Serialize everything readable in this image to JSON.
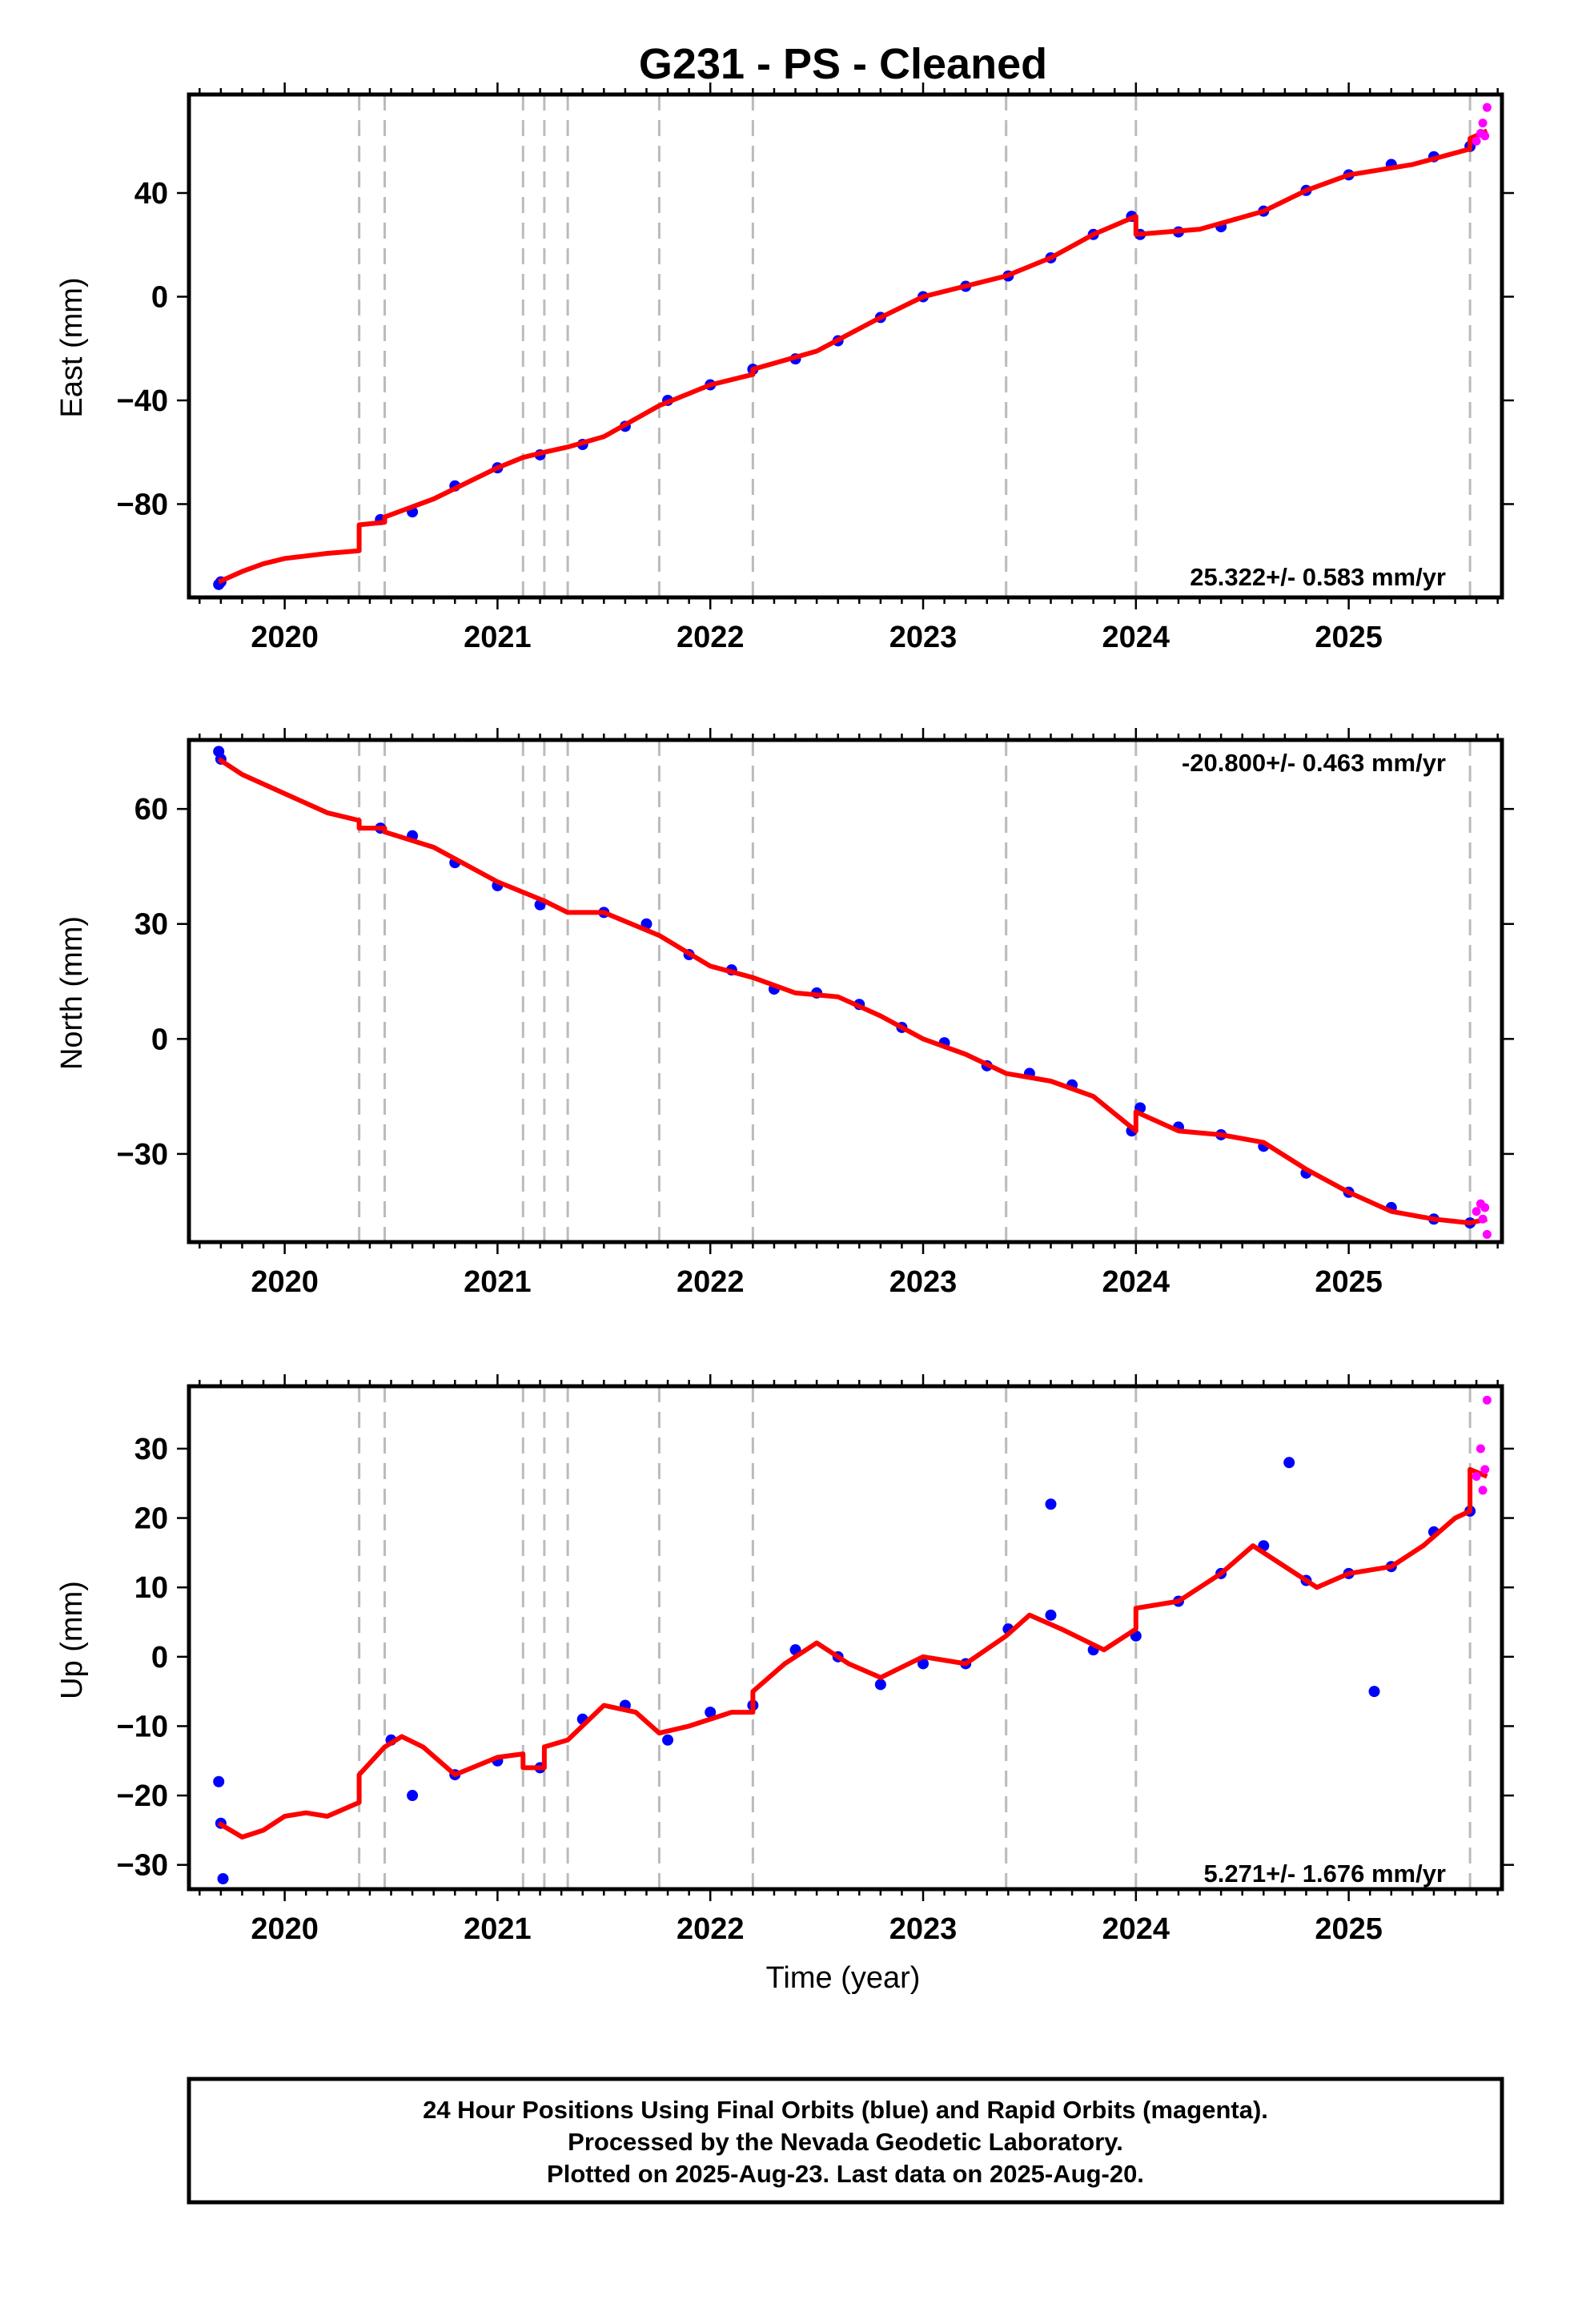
{
  "figure": {
    "title": "G231  - PS - Cleaned",
    "footer": [
      "24 Hour Positions Using Final Orbits (blue) and Rapid Orbits (magenta).",
      "Processed by the Nevada Geodetic Laboratory.",
      "Plotted on 2025-Aug-23. Last data on 2025-Aug-20."
    ],
    "colors": {
      "final_orbits": "#0000ff",
      "rapid_orbits": "#ff00ff",
      "model_fit": "#ff0000",
      "event_lines": "#bbbbbb"
    }
  },
  "chart_data": [
    {
      "type": "scatter",
      "ylabel": "East (mm)",
      "xlabel": "",
      "rate": "25.322+/- 0.583 mm/yr",
      "xlim": [
        2019.55,
        2025.72
      ],
      "ylim": [
        -116,
        78
      ],
      "xticks": [
        2020,
        2021,
        2022,
        2023,
        2024,
        2025
      ],
      "yticks": [
        -80,
        -40,
        0,
        40
      ],
      "event_lines": [
        2020.35,
        2020.47,
        2021.12,
        2021.22,
        2021.33,
        2021.76,
        2022.2,
        2023.39,
        2024.0,
        2025.57
      ],
      "series": [
        {
          "name": "Final Orbits",
          "values": [
            [
              2019.69,
              -111
            ],
            [
              2019.7,
              -110
            ],
            [
              2020.45,
              -86
            ],
            [
              2020.6,
              -83
            ],
            [
              2020.8,
              -73
            ],
            [
              2021.0,
              -66
            ],
            [
              2021.2,
              -61
            ],
            [
              2021.4,
              -57
            ],
            [
              2021.6,
              -50
            ],
            [
              2021.8,
              -40
            ],
            [
              2022.0,
              -34
            ],
            [
              2022.2,
              -28
            ],
            [
              2022.4,
              -24
            ],
            [
              2022.6,
              -17
            ],
            [
              2022.8,
              -8
            ],
            [
              2023.0,
              0
            ],
            [
              2023.2,
              4
            ],
            [
              2023.4,
              8
            ],
            [
              2023.6,
              15
            ],
            [
              2023.8,
              24
            ],
            [
              2023.98,
              31
            ],
            [
              2024.02,
              24
            ],
            [
              2024.2,
              25
            ],
            [
              2024.4,
              27
            ],
            [
              2024.6,
              33
            ],
            [
              2024.8,
              41
            ],
            [
              2025.0,
              47
            ],
            [
              2025.2,
              51
            ],
            [
              2025.4,
              54
            ],
            [
              2025.57,
              58
            ]
          ]
        },
        {
          "name": "Rapid Orbits",
          "values": [
            [
              2025.6,
              60
            ],
            [
              2025.62,
              63
            ],
            [
              2025.63,
              67
            ],
            [
              2025.64,
              62
            ],
            [
              2025.65,
              73
            ]
          ]
        },
        {
          "name": "Model Fit",
          "values": [
            [
              2019.69,
              -110
            ],
            [
              2019.8,
              -106
            ],
            [
              2019.9,
              -103
            ],
            [
              2020.0,
              -101
            ],
            [
              2020.2,
              -99
            ],
            [
              2020.35,
              -98
            ],
            [
              2020.35,
              -88
            ],
            [
              2020.47,
              -87
            ],
            [
              2020.47,
              -85
            ],
            [
              2020.7,
              -78
            ],
            [
              2021.0,
              -66
            ],
            [
              2021.12,
              -62
            ],
            [
              2021.22,
              -60
            ],
            [
              2021.33,
              -58
            ],
            [
              2021.5,
              -54
            ],
            [
              2021.76,
              -42
            ],
            [
              2022.0,
              -34
            ],
            [
              2022.2,
              -30
            ],
            [
              2022.2,
              -28
            ],
            [
              2022.5,
              -21
            ],
            [
              2022.8,
              -8
            ],
            [
              2023.0,
              0
            ],
            [
              2023.39,
              8
            ],
            [
              2023.6,
              15
            ],
            [
              2023.8,
              24
            ],
            [
              2024.0,
              31
            ],
            [
              2024.0,
              24
            ],
            [
              2024.3,
              26
            ],
            [
              2024.6,
              33
            ],
            [
              2024.8,
              41
            ],
            [
              2025.0,
              47
            ],
            [
              2025.3,
              51
            ],
            [
              2025.57,
              57
            ],
            [
              2025.57,
              61
            ],
            [
              2025.65,
              64
            ]
          ]
        }
      ]
    },
    {
      "type": "scatter",
      "ylabel": "North (mm)",
      "xlabel": "",
      "rate": "-20.800+/- 0.463 mm/yr",
      "xlim": [
        2019.55,
        2025.72
      ],
      "ylim": [
        -53,
        78
      ],
      "xticks": [
        2020,
        2021,
        2022,
        2023,
        2024,
        2025
      ],
      "yticks": [
        -30,
        0,
        30,
        60
      ],
      "event_lines": [
        2020.35,
        2020.47,
        2021.12,
        2021.22,
        2021.33,
        2021.76,
        2022.2,
        2023.39,
        2024.0,
        2025.57
      ],
      "series": [
        {
          "name": "Final Orbits",
          "values": [
            [
              2019.69,
              75
            ],
            [
              2019.7,
              73
            ],
            [
              2020.45,
              55
            ],
            [
              2020.6,
              53
            ],
            [
              2020.8,
              46
            ],
            [
              2021.0,
              40
            ],
            [
              2021.2,
              35
            ],
            [
              2021.5,
              33
            ],
            [
              2021.7,
              30
            ],
            [
              2021.9,
              22
            ],
            [
              2022.1,
              18
            ],
            [
              2022.3,
              13
            ],
            [
              2022.5,
              12
            ],
            [
              2022.7,
              9
            ],
            [
              2022.9,
              3
            ],
            [
              2023.1,
              -1
            ],
            [
              2023.3,
              -7
            ],
            [
              2023.5,
              -9
            ],
            [
              2023.7,
              -12
            ],
            [
              2023.98,
              -24
            ],
            [
              2024.02,
              -18
            ],
            [
              2024.2,
              -23
            ],
            [
              2024.4,
              -25
            ],
            [
              2024.6,
              -28
            ],
            [
              2024.8,
              -35
            ],
            [
              2025.0,
              -40
            ],
            [
              2025.2,
              -44
            ],
            [
              2025.4,
              -47
            ],
            [
              2025.57,
              -48
            ]
          ]
        },
        {
          "name": "Rapid Orbits",
          "values": [
            [
              2025.6,
              -45
            ],
            [
              2025.62,
              -43
            ],
            [
              2025.63,
              -47
            ],
            [
              2025.64,
              -44
            ],
            [
              2025.65,
              -51
            ]
          ]
        },
        {
          "name": "Model Fit",
          "values": [
            [
              2019.69,
              73
            ],
            [
              2019.8,
              69
            ],
            [
              2020.0,
              64
            ],
            [
              2020.2,
              59
            ],
            [
              2020.35,
              57
            ],
            [
              2020.35,
              55
            ],
            [
              2020.47,
              55
            ],
            [
              2020.47,
              54
            ],
            [
              2020.7,
              50
            ],
            [
              2021.0,
              41
            ],
            [
              2021.22,
              36
            ],
            [
              2021.33,
              33
            ],
            [
              2021.5,
              33
            ],
            [
              2021.76,
              27
            ],
            [
              2022.0,
              19
            ],
            [
              2022.2,
              16
            ],
            [
              2022.4,
              12
            ],
            [
              2022.6,
              11
            ],
            [
              2022.8,
              6
            ],
            [
              2023.0,
              0
            ],
            [
              2023.2,
              -4
            ],
            [
              2023.39,
              -9
            ],
            [
              2023.6,
              -11
            ],
            [
              2023.8,
              -15
            ],
            [
              2024.0,
              -24
            ],
            [
              2024.0,
              -19
            ],
            [
              2024.2,
              -24
            ],
            [
              2024.4,
              -25
            ],
            [
              2024.6,
              -27
            ],
            [
              2024.8,
              -34
            ],
            [
              2025.0,
              -40
            ],
            [
              2025.2,
              -45
            ],
            [
              2025.4,
              -47
            ],
            [
              2025.57,
              -48
            ],
            [
              2025.65,
              -47
            ]
          ]
        }
      ]
    },
    {
      "type": "scatter",
      "ylabel": "Up (mm)",
      "xlabel": "Time (year)",
      "rate": "5.271+/- 1.676 mm/yr",
      "xlim": [
        2019.55,
        2025.72
      ],
      "ylim": [
        -33.5,
        39
      ],
      "xticks": [
        2020,
        2021,
        2022,
        2023,
        2024,
        2025
      ],
      "yticks": [
        -30,
        -20,
        -10,
        0,
        10,
        20,
        30
      ],
      "event_lines": [
        2020.35,
        2020.47,
        2021.12,
        2021.22,
        2021.33,
        2021.76,
        2022.2,
        2023.39,
        2024.0,
        2025.57
      ],
      "series": [
        {
          "name": "Final Orbits",
          "values": [
            [
              2019.69,
              -18
            ],
            [
              2019.7,
              -24
            ],
            [
              2019.71,
              -32
            ],
            [
              2020.5,
              -12
            ],
            [
              2020.6,
              -20
            ],
            [
              2020.8,
              -17
            ],
            [
              2021.0,
              -15
            ],
            [
              2021.2,
              -16
            ],
            [
              2021.4,
              -9
            ],
            [
              2021.6,
              -7
            ],
            [
              2021.8,
              -12
            ],
            [
              2022.0,
              -8
            ],
            [
              2022.2,
              -7
            ],
            [
              2022.4,
              1
            ],
            [
              2022.6,
              0
            ],
            [
              2022.8,
              -4
            ],
            [
              2023.0,
              -1
            ],
            [
              2023.2,
              -1
            ],
            [
              2023.4,
              4
            ],
            [
              2023.6,
              6
            ],
            [
              2023.8,
              1
            ],
            [
              2024.0,
              3
            ],
            [
              2024.2,
              8
            ],
            [
              2024.4,
              12
            ],
            [
              2024.6,
              16
            ],
            [
              2024.8,
              11
            ],
            [
              2025.0,
              12
            ],
            [
              2025.2,
              13
            ],
            [
              2025.4,
              18
            ],
            [
              2025.57,
              21
            ],
            [
              2024.72,
              28
            ],
            [
              2025.12,
              -5
            ],
            [
              2023.6,
              22
            ]
          ]
        },
        {
          "name": "Rapid Orbits",
          "values": [
            [
              2025.6,
              26
            ],
            [
              2025.62,
              30
            ],
            [
              2025.63,
              24
            ],
            [
              2025.64,
              27
            ],
            [
              2025.65,
              37
            ]
          ]
        },
        {
          "name": "Model Fit",
          "values": [
            [
              2019.69,
              -24
            ],
            [
              2019.8,
              -26
            ],
            [
              2019.9,
              -25
            ],
            [
              2020.0,
              -23
            ],
            [
              2020.1,
              -22.5
            ],
            [
              2020.2,
              -23
            ],
            [
              2020.35,
              -21
            ],
            [
              2020.35,
              -17
            ],
            [
              2020.47,
              -13
            ],
            [
              2020.55,
              -11.5
            ],
            [
              2020.65,
              -13
            ],
            [
              2020.8,
              -17
            ],
            [
              2021.0,
              -14.5
            ],
            [
              2021.12,
              -14
            ],
            [
              2021.12,
              -16
            ],
            [
              2021.22,
              -16
            ],
            [
              2021.22,
              -13
            ],
            [
              2021.33,
              -12
            ],
            [
              2021.5,
              -7
            ],
            [
              2021.65,
              -8
            ],
            [
              2021.76,
              -11
            ],
            [
              2021.9,
              -10
            ],
            [
              2022.1,
              -8
            ],
            [
              2022.2,
              -8
            ],
            [
              2022.2,
              -5
            ],
            [
              2022.35,
              -1
            ],
            [
              2022.5,
              2
            ],
            [
              2022.65,
              -1
            ],
            [
              2022.8,
              -3
            ],
            [
              2023.0,
              0
            ],
            [
              2023.2,
              -1
            ],
            [
              2023.39,
              3
            ],
            [
              2023.5,
              6
            ],
            [
              2023.65,
              4
            ],
            [
              2023.85,
              1
            ],
            [
              2024.0,
              4
            ],
            [
              2024.0,
              7
            ],
            [
              2024.2,
              8
            ],
            [
              2024.4,
              12
            ],
            [
              2024.55,
              16
            ],
            [
              2024.7,
              13
            ],
            [
              2024.85,
              10
            ],
            [
              2025.0,
              12
            ],
            [
              2025.2,
              13
            ],
            [
              2025.35,
              16
            ],
            [
              2025.5,
              20
            ],
            [
              2025.57,
              21
            ],
            [
              2025.57,
              27
            ],
            [
              2025.65,
              26
            ]
          ]
        }
      ]
    }
  ]
}
